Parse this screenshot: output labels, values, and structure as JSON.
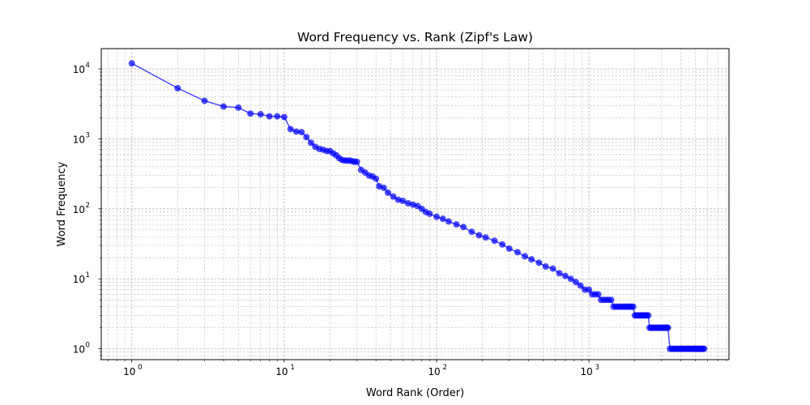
{
  "chart_data": {
    "type": "line",
    "title": "Word Frequency vs. Rank (Zipf's Law)",
    "xlabel": "Word Rank (Order)",
    "ylabel": "Word Frequency",
    "xscale": "log",
    "yscale": "log",
    "xlim": [
      0.63,
      8300
    ],
    "ylim": [
      0.7,
      19500
    ],
    "grid": true,
    "legend": "none",
    "line_color": "#0000ff",
    "x_ticks": [
      {
        "value": 1,
        "base": "10",
        "exp": "0"
      },
      {
        "value": 10,
        "base": "10",
        "exp": "1"
      },
      {
        "value": 100,
        "base": "10",
        "exp": "2"
      },
      {
        "value": 1000,
        "base": "10",
        "exp": "3"
      }
    ],
    "y_ticks": [
      {
        "value": 1,
        "base": "10",
        "exp": "0"
      },
      {
        "value": 10,
        "base": "10",
        "exp": "1"
      },
      {
        "value": 100,
        "base": "10",
        "exp": "2"
      },
      {
        "value": 1000,
        "base": "10",
        "exp": "3"
      },
      {
        "value": 10000,
        "base": "10",
        "exp": "4"
      }
    ],
    "series": [
      {
        "x": [
          1,
          2,
          3,
          4,
          5,
          6,
          7,
          8,
          9,
          10,
          11,
          12,
          13,
          14,
          15,
          16,
          17,
          18,
          19,
          20,
          21,
          22,
          23,
          24,
          25,
          26,
          27,
          28,
          29,
          30,
          32,
          34,
          36,
          38,
          40,
          42,
          45,
          48,
          52,
          56,
          60,
          65,
          70,
          75,
          80,
          85,
          90,
          100,
          110,
          120,
          135,
          150,
          170,
          190,
          210,
          240,
          270,
          300,
          340,
          380,
          420,
          470,
          520,
          580,
          640,
          700,
          760,
          820,
          880,
          940,
          1000,
          1050,
          1100,
          1150,
          1200,
          1250,
          1300,
          1350,
          1400,
          1450,
          1500,
          1550,
          1600,
          1650,
          1700,
          1750,
          1800,
          1850,
          1900,
          1950,
          2000,
          2050,
          2100,
          2150,
          2200,
          2250,
          2300,
          2350,
          2400,
          2450,
          2500,
          2550,
          2600,
          2650,
          2700,
          2750,
          2800,
          2850,
          2900,
          2950,
          3000,
          3050,
          3100,
          3150,
          3200,
          3250,
          3300,
          3400,
          3500,
          3600,
          3700,
          3800,
          3900,
          4000,
          4100,
          4200,
          4300,
          4400,
          4500,
          4600,
          4700,
          4800,
          4900,
          5000,
          5100,
          5200,
          5300,
          5400,
          5500,
          5600,
          5700
        ],
        "y": [
          12000,
          5300,
          3500,
          2900,
          2800,
          2300,
          2250,
          2100,
          2100,
          2050,
          1380,
          1270,
          1250,
          1060,
          880,
          770,
          720,
          700,
          670,
          670,
          620,
          580,
          530,
          500,
          490,
          490,
          490,
          480,
          470,
          470,
          360,
          330,
          300,
          290,
          270,
          210,
          200,
          170,
          150,
          135,
          130,
          120,
          115,
          110,
          100,
          90,
          85,
          77,
          72,
          66,
          60,
          55,
          47,
          42,
          39,
          35,
          31,
          27,
          24,
          21,
          19,
          17,
          15,
          14,
          12,
          11,
          10,
          9,
          8,
          7,
          7,
          6,
          6,
          6,
          5,
          5,
          5,
          5,
          5,
          4,
          4,
          4,
          4,
          4,
          4,
          4,
          4,
          4,
          4,
          4,
          3,
          3,
          3,
          3,
          3,
          3,
          3,
          3,
          3,
          3,
          2,
          2,
          2,
          2,
          2,
          2,
          2,
          2,
          2,
          2,
          2,
          2,
          2,
          2,
          2,
          2,
          2,
          1,
          1,
          1,
          1,
          1,
          1,
          1,
          1,
          1,
          1,
          1,
          1,
          1,
          1,
          1,
          1,
          1,
          1,
          1,
          1,
          1,
          1,
          1,
          1
        ]
      }
    ]
  }
}
